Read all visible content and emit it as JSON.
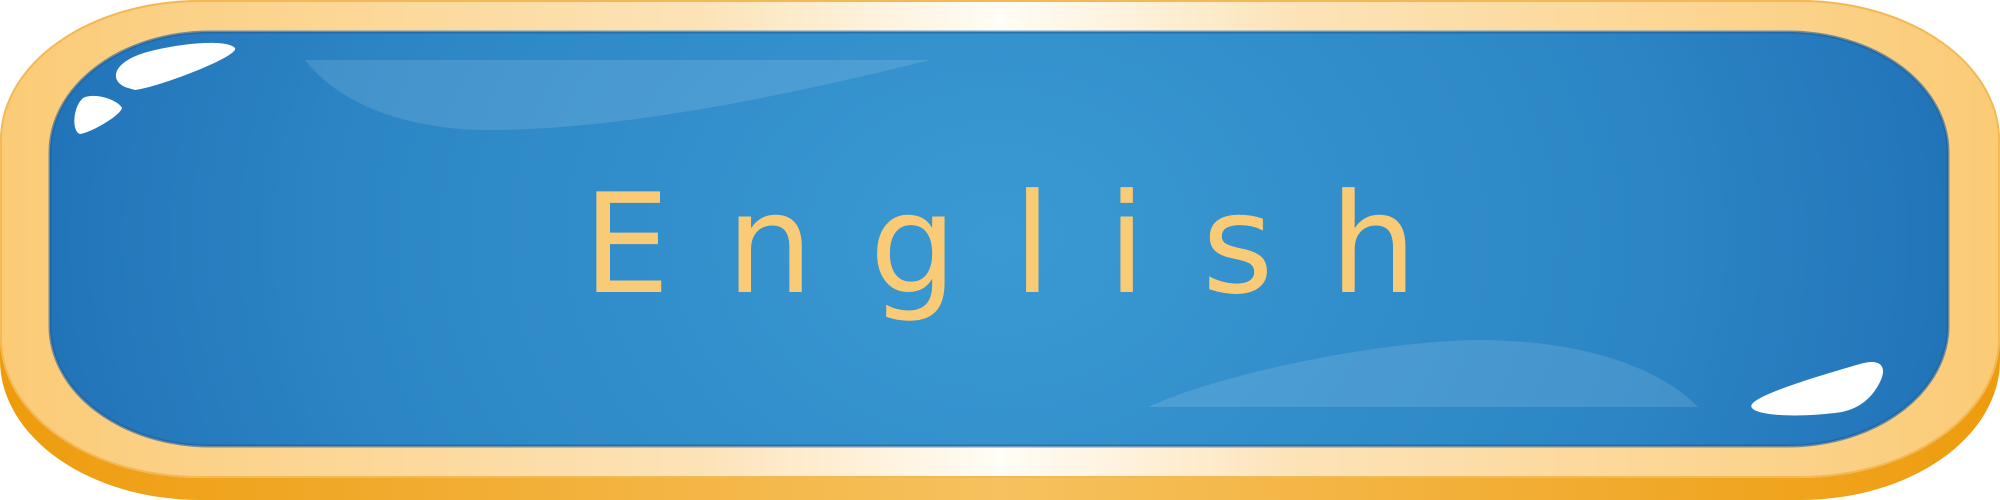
{
  "button": {
    "label": "English",
    "colors": {
      "face_center": "#3A99D2",
      "face_edge": "#1B67B0",
      "frame_gold": "#FACB77",
      "frame_highlight": "#FFFDF6",
      "frame_shadow": "#EE9C0D",
      "label": "#FACB77"
    }
  }
}
